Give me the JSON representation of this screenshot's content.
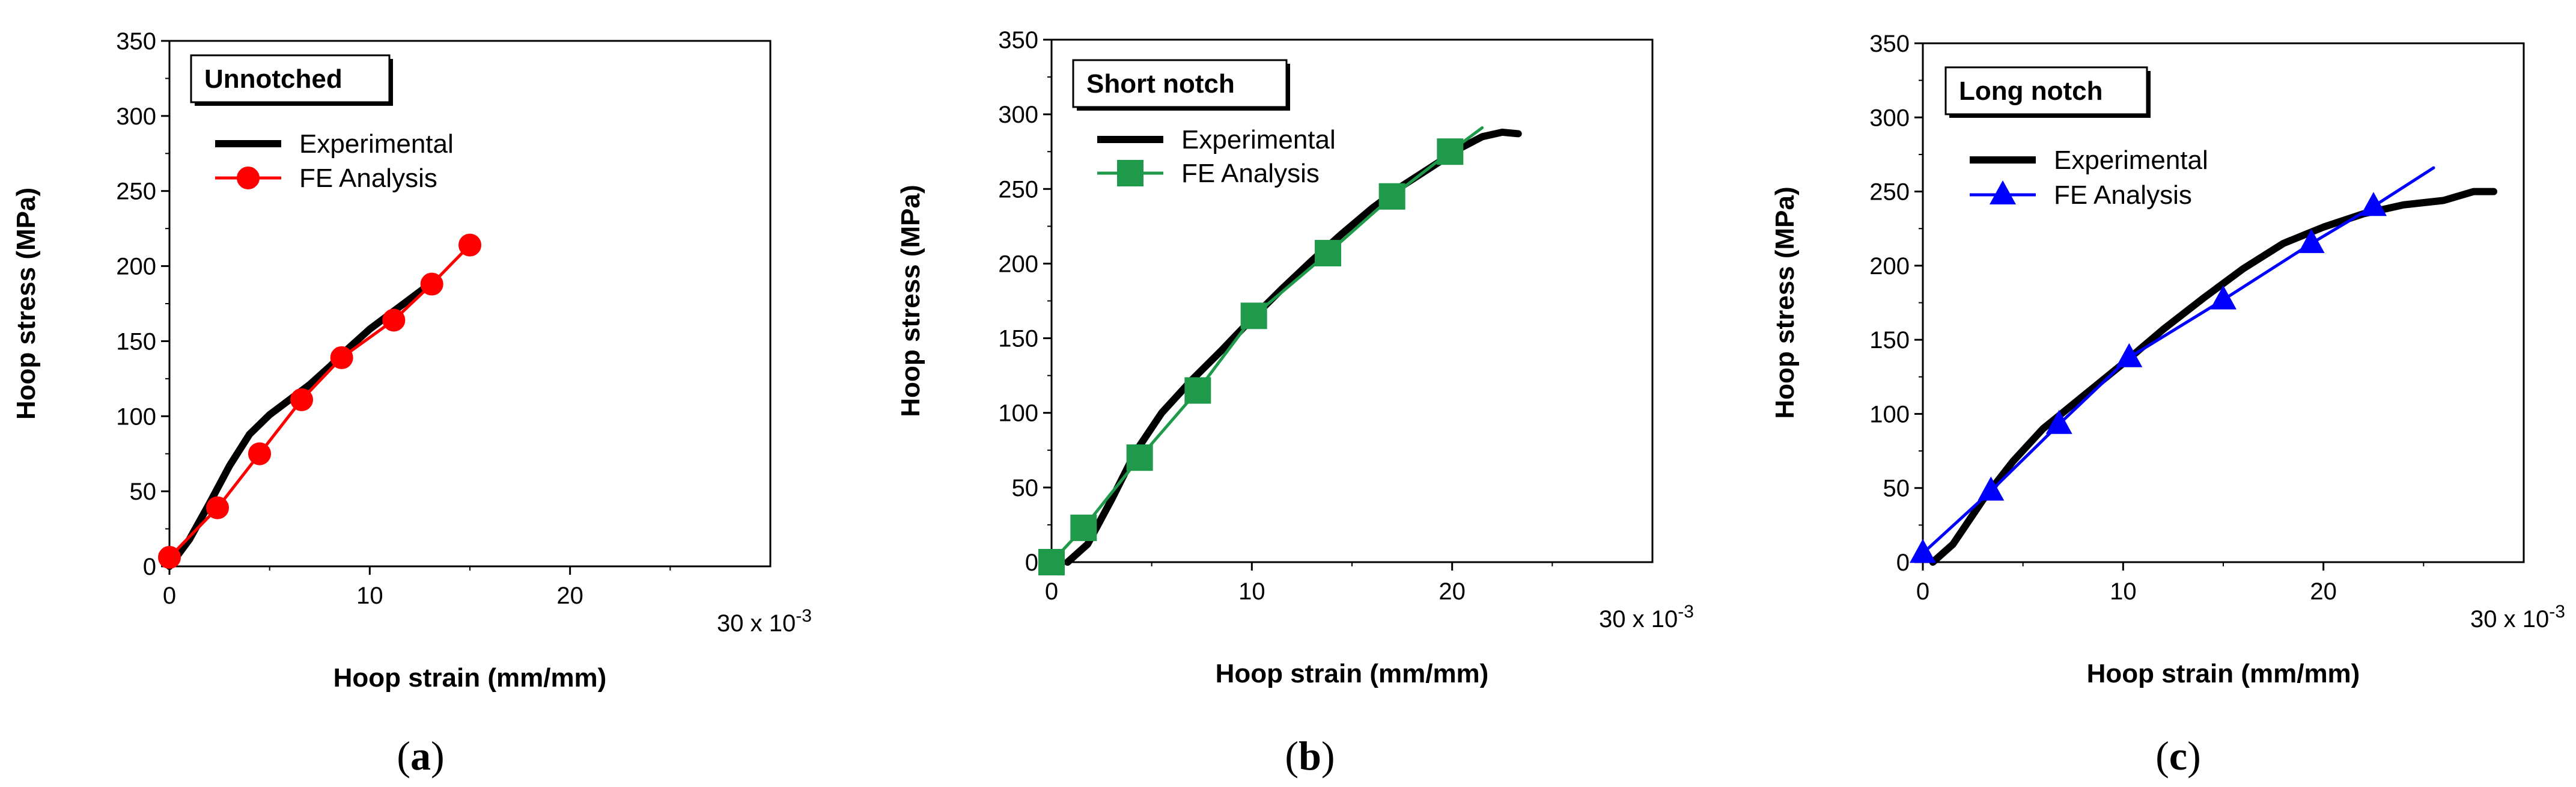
{
  "chart_data": [
    {
      "type": "line",
      "panel": "a",
      "caption": "a",
      "box_title": "Unnotched",
      "xlabel": "Hoop strain (mm/mm)",
      "ylabel": "Hoop stress (MPa)",
      "x_multiplier_label": "30 x 10",
      "x_multiplier_exp": "-3",
      "xlim": [
        0,
        30
      ],
      "ylim": [
        0,
        350
      ],
      "xticks": [
        0,
        10,
        20
      ],
      "xtick_labels": [
        "0",
        "10",
        "20"
      ],
      "yticks": [
        0,
        50,
        100,
        150,
        200,
        250,
        300,
        350
      ],
      "ytick_labels": [
        "0",
        "50",
        "100",
        "150",
        "200",
        "250",
        "300",
        "350"
      ],
      "series": [
        {
          "name": "Experimental",
          "color": "#000000",
          "marker": "none",
          "x": [
            0,
            1,
            2,
            3,
            4,
            5,
            6,
            7,
            8,
            9,
            10,
            11,
            12,
            13
          ],
          "y": [
            0,
            18,
            42,
            67,
            88,
            101,
            111,
            121,
            133,
            146,
            158,
            168,
            178,
            188
          ]
        },
        {
          "name": "FE Analysis",
          "color": "#ff0000",
          "marker": "circle",
          "x": [
            0,
            2.4,
            4.5,
            6.6,
            8.6,
            11.2,
            13.1,
            15.0
          ],
          "y": [
            6,
            39,
            75,
            111,
            139,
            164,
            188,
            214
          ]
        }
      ]
    },
    {
      "type": "line",
      "panel": "b",
      "caption": "b",
      "box_title": "Short notch",
      "xlabel": "Hoop strain (mm/mm)",
      "ylabel": "Hoop stress (MPa)",
      "x_multiplier_label": "30 x 10",
      "x_multiplier_exp": "-3",
      "xlim": [
        0,
        30
      ],
      "ylim": [
        0,
        350
      ],
      "xticks": [
        0,
        10,
        20
      ],
      "xtick_labels": [
        "0",
        "10",
        "20"
      ],
      "yticks": [
        0,
        50,
        100,
        150,
        200,
        250,
        300,
        350
      ],
      "ytick_labels": [
        "0",
        "50",
        "100",
        "150",
        "200",
        "250",
        "300",
        "350"
      ],
      "series": [
        {
          "name": "Experimental",
          "color": "#000000",
          "marker": "none",
          "x": [
            0.8,
            1.8,
            3,
            4.2,
            5.5,
            7,
            8.5,
            10,
            11.5,
            13,
            14.5,
            16,
            17.5,
            19,
            20.5,
            21.5,
            22.5,
            23.3
          ],
          "y": [
            0,
            12,
            42,
            74,
            100,
            122,
            142,
            163,
            183,
            202,
            220,
            237,
            252,
            265,
            278,
            285,
            288,
            287
          ]
        },
        {
          "name": "FE Analysis",
          "color": "#1f9a4a",
          "marker": "square",
          "x": [
            0,
            1.6,
            4.4,
            7.3,
            10.1,
            13.8,
            17.0,
            19.9,
            21.5
          ],
          "y": [
            0,
            23,
            70,
            115,
            165,
            207,
            245,
            275,
            291
          ]
        }
      ]
    },
    {
      "type": "line",
      "panel": "c",
      "caption": "c",
      "box_title": "Long notch",
      "xlabel": "Hoop strain (mm/mm)",
      "ylabel": "Hoop stress (MPa)",
      "x_multiplier_label": "30 x 10",
      "x_multiplier_exp": "-3",
      "xlim": [
        0,
        30
      ],
      "ylim": [
        0,
        350
      ],
      "xticks": [
        0,
        10,
        20
      ],
      "xtick_labels": [
        "0",
        "10",
        "20"
      ],
      "yticks": [
        0,
        50,
        100,
        150,
        200,
        250,
        300,
        350
      ],
      "ytick_labels": [
        "0",
        "50",
        "100",
        "150",
        "200",
        "250",
        "300",
        "350"
      ],
      "series": [
        {
          "name": "Experimental",
          "color": "#000000",
          "marker": "none",
          "x": [
            0.5,
            1.5,
            3,
            4.5,
            6,
            8,
            10,
            12,
            14,
            16,
            18,
            20,
            22,
            24,
            26,
            27.5,
            28.5
          ],
          "y": [
            0,
            12,
            42,
            68,
            90,
            112,
            134,
            157,
            178,
            198,
            215,
            226,
            235,
            241,
            244,
            250,
            250
          ]
        },
        {
          "name": "FE Analysis",
          "color": "#0000ff",
          "marker": "triangle",
          "x": [
            0,
            3.4,
            6.8,
            10.3,
            15.0,
            19.4,
            22.5,
            25.5
          ],
          "y": [
            6,
            48,
            93,
            138,
            177,
            215,
            240,
            266
          ]
        }
      ]
    }
  ]
}
